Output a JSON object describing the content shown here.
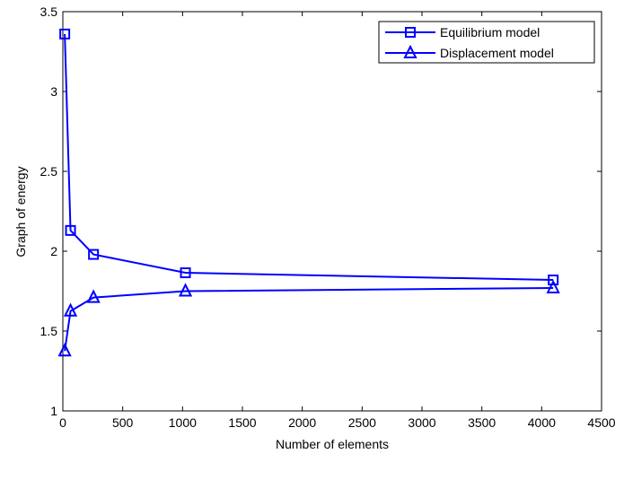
{
  "chart_data": {
    "type": "line",
    "title": "",
    "xlabel": "Number of elements",
    "ylabel": "Graph of energy",
    "xlim": [
      0,
      4500
    ],
    "ylim": [
      1,
      3.5
    ],
    "xticks": [
      0,
      500,
      1000,
      1500,
      2000,
      2500,
      3000,
      3500,
      4000,
      4500
    ],
    "yticks": [
      1,
      1.5,
      2,
      2.5,
      3,
      3.5
    ],
    "ytick_labels": [
      "1",
      "1.5",
      "2",
      "2.5",
      "3",
      "3.5"
    ],
    "grid": false,
    "legend_position": "top-right",
    "color": "#0000ff",
    "series": [
      {
        "name": "Equilibrium model",
        "marker": "square",
        "x": [
          16,
          64,
          256,
          1024,
          4096
        ],
        "y": [
          3.36,
          2.13,
          1.98,
          1.865,
          1.82
        ]
      },
      {
        "name": "Displacement model",
        "marker": "triangle",
        "x": [
          16,
          64,
          256,
          1024,
          4096
        ],
        "y": [
          1.375,
          1.625,
          1.71,
          1.75,
          1.77
        ]
      }
    ]
  }
}
